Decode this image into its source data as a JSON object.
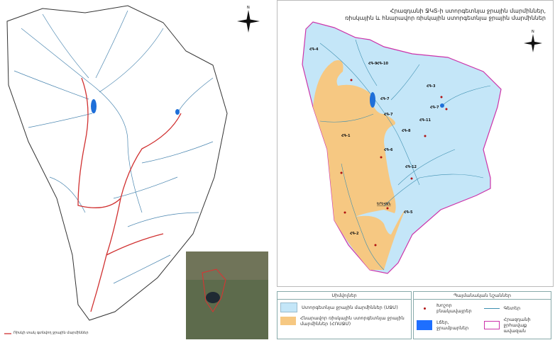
{
  "left_map": {
    "legend_label": "Ռիսկի տակ գտնվող ջրային մարմիններ",
    "compass": "N",
    "colors": {
      "river": "#4a86b0",
      "risk_river": "#d03030",
      "lake": "#1e6fd9",
      "boundary": "#333333"
    }
  },
  "right_map": {
    "title_line1": "Հրազդանի ՋԿՏ-ի ստորգետնյա ջրային մարմիններ,",
    "title_line2": "ռիսկային և հնարավոր ռիսկային ստորգետնյա ջրային մարմիններ",
    "compass": "N",
    "zones": [
      "ՀԳ-1",
      "ՀԳ-2",
      "ՀԳ-3",
      "ՀԳ-4",
      "ՀԳ-5",
      "ՀԳ-6",
      "ՀԳ-7",
      "ՀԳ-7",
      "ՀԳ-8",
      "ՀԳ-9",
      "ՀԳ-10",
      "ՀԳ-11",
      "ՀԳ-12"
    ],
    "capital": "ԵՐԵՎԱՆ",
    "colors": {
      "gwb": "#c4e6f8",
      "risk_gwb": "#f6c882",
      "basin_border": "#cc33aa",
      "river": "#3d8fb0",
      "city": "#b01010"
    }
  },
  "legend": {
    "left_header": "Սիմվոլներ",
    "right_header": "Պայմանական նշաններ",
    "items": [
      {
        "label": "Ստորգետնյա ջրային մարմիններ (ՍՋՄ)",
        "color": "#c4e6f8"
      },
      {
        "label": "Հնարավոր ռիսկային ստորգետնյա ջրային մարմիններ (ՀՌՍՋՄ)",
        "color": "#f6c882"
      }
    ],
    "symbols": [
      {
        "label": "Խոշոր բնակավայրեր",
        "icon": "red-dot"
      },
      {
        "label": "Գետեր",
        "icon": "line"
      },
      {
        "label": "Լճեր, ջրամբարներ",
        "icon": "blue-rect"
      },
      {
        "label": "Հրազդանի ջրհավաք ավազան",
        "icon": "magenta-rect"
      }
    ]
  }
}
